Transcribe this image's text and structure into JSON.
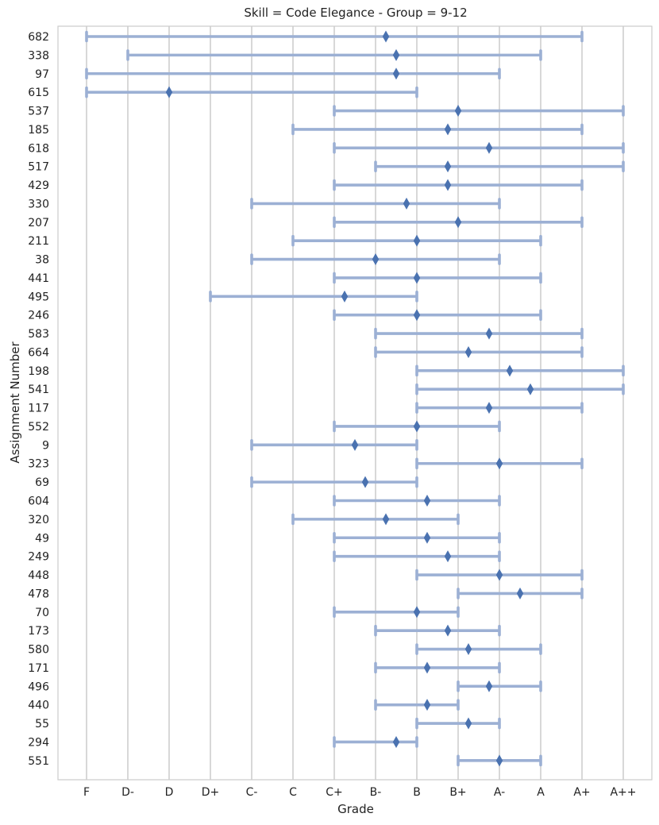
{
  "chart_data": {
    "type": "range-dot",
    "title": "Skill = Code Elegance - Group = 9-12",
    "xlabel": "Grade",
    "ylabel": "Assignment Number",
    "grades": [
      "F",
      "D-",
      "D",
      "D+",
      "C-",
      "C",
      "C+",
      "B-",
      "B",
      "B+",
      "A-",
      "A",
      "A+",
      "A++"
    ],
    "grid": "vertical",
    "colors": {
      "range": "#9cb0d4",
      "marker": "#4a72b0",
      "grid": "#cfcfcf"
    },
    "rows": [
      {
        "id": "682",
        "min": 0,
        "max": 12,
        "mean": 7.25
      },
      {
        "id": "338",
        "min": 1,
        "max": 11,
        "mean": 7.5
      },
      {
        "id": "97",
        "min": 0,
        "max": 10,
        "mean": 7.5
      },
      {
        "id": "615",
        "min": 0,
        "max": 8,
        "mean": 2
      },
      {
        "id": "537",
        "min": 6,
        "max": 13,
        "mean": 9
      },
      {
        "id": "185",
        "min": 5,
        "max": 12,
        "mean": 8.75
      },
      {
        "id": "618",
        "min": 6,
        "max": 13,
        "mean": 9.75
      },
      {
        "id": "517",
        "min": 7,
        "max": 13,
        "mean": 8.75
      },
      {
        "id": "429",
        "min": 6,
        "max": 12,
        "mean": 8.75
      },
      {
        "id": "330",
        "min": 4,
        "max": 10,
        "mean": 7.75
      },
      {
        "id": "207",
        "min": 6,
        "max": 12,
        "mean": 9
      },
      {
        "id": "211",
        "min": 5,
        "max": 11,
        "mean": 8
      },
      {
        "id": "38",
        "min": 4,
        "max": 10,
        "mean": 7
      },
      {
        "id": "441",
        "min": 6,
        "max": 11,
        "mean": 8
      },
      {
        "id": "495",
        "min": 3,
        "max": 8,
        "mean": 6.25
      },
      {
        "id": "246",
        "min": 6,
        "max": 11,
        "mean": 8
      },
      {
        "id": "583",
        "min": 7,
        "max": 12,
        "mean": 9.75
      },
      {
        "id": "664",
        "min": 7,
        "max": 12,
        "mean": 9.25
      },
      {
        "id": "198",
        "min": 8,
        "max": 13,
        "mean": 10.25
      },
      {
        "id": "541",
        "min": 8,
        "max": 13,
        "mean": 10.75
      },
      {
        "id": "117",
        "min": 8,
        "max": 12,
        "mean": 9.75
      },
      {
        "id": "552",
        "min": 6,
        "max": 10,
        "mean": 8
      },
      {
        "id": "9",
        "min": 4,
        "max": 8,
        "mean": 6.5
      },
      {
        "id": "323",
        "min": 8,
        "max": 12,
        "mean": 10
      },
      {
        "id": "69",
        "min": 4,
        "max": 8,
        "mean": 6.75
      },
      {
        "id": "604",
        "min": 6,
        "max": 10,
        "mean": 8.25
      },
      {
        "id": "320",
        "min": 5,
        "max": 9,
        "mean": 7.25
      },
      {
        "id": "49",
        "min": 6,
        "max": 10,
        "mean": 8.25
      },
      {
        "id": "249",
        "min": 6,
        "max": 10,
        "mean": 8.75
      },
      {
        "id": "448",
        "min": 8,
        "max": 12,
        "mean": 10
      },
      {
        "id": "478",
        "min": 9,
        "max": 12,
        "mean": 10.5
      },
      {
        "id": "70",
        "min": 6,
        "max": 9,
        "mean": 8
      },
      {
        "id": "173",
        "min": 7,
        "max": 10,
        "mean": 8.75
      },
      {
        "id": "580",
        "min": 8,
        "max": 11,
        "mean": 9.25
      },
      {
        "id": "171",
        "min": 7,
        "max": 10,
        "mean": 8.25
      },
      {
        "id": "496",
        "min": 9,
        "max": 11,
        "mean": 9.75
      },
      {
        "id": "440",
        "min": 7,
        "max": 9,
        "mean": 8.25
      },
      {
        "id": "55",
        "min": 8,
        "max": 10,
        "mean": 9.25
      },
      {
        "id": "294",
        "min": 6,
        "max": 8,
        "mean": 7.5
      },
      {
        "id": "551",
        "min": 9,
        "max": 11,
        "mean": 10
      }
    ]
  }
}
